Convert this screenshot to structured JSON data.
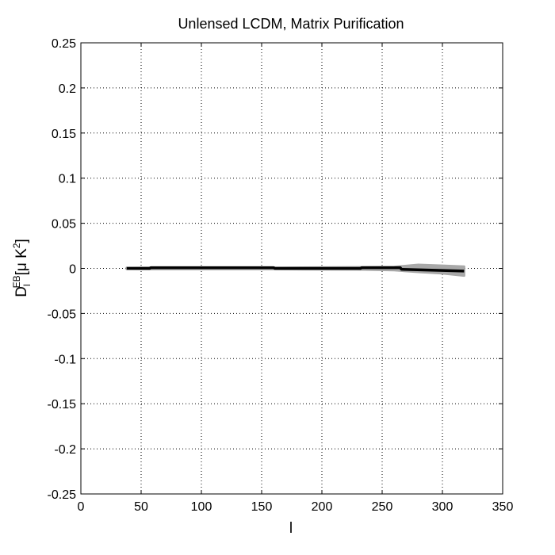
{
  "chart_data": {
    "type": "line",
    "title": "Unlensed LCDM, Matrix Purification",
    "xlabel": "l",
    "ylabel": {
      "base": "D",
      "sub": "l",
      "sup": "EB",
      "unit_open": "[μ K",
      "unit_sup": "2",
      "unit_close": "]"
    },
    "xlim": [
      0,
      350
    ],
    "ylim": [
      -0.25,
      0.25
    ],
    "xticks": [
      0,
      50,
      100,
      150,
      200,
      250,
      300,
      350
    ],
    "yticks": [
      0.25,
      0.2,
      0.15,
      0.1,
      0.05,
      0,
      -0.05,
      -0.1,
      -0.15,
      -0.2,
      -0.25
    ],
    "xtick_labels": [
      "0",
      "50",
      "100",
      "150",
      "200",
      "250",
      "300",
      "350"
    ],
    "ytick_labels": [
      "0.25",
      "0.2",
      "0.15",
      "0.1",
      "0.05",
      "0",
      "-0.05",
      "-0.1",
      "-0.15",
      "-0.2",
      "-0.25"
    ],
    "grid": true,
    "grid_style": "dotted",
    "colors": {
      "band": "#a8a8a8",
      "mean": "#000000",
      "axis": "#000000",
      "grid": "#000000"
    },
    "series": [
      {
        "role": "band-upper",
        "x": [
          38,
          60,
          100,
          160,
          230,
          260,
          280,
          300,
          318
        ],
        "values": [
          0.0005,
          0.0008,
          0.0008,
          0.0007,
          0.0012,
          0.0015,
          0.004,
          0.003,
          0.002
        ]
      },
      {
        "role": "band-lower",
        "x": [
          38,
          60,
          100,
          160,
          230,
          260,
          280,
          300,
          318
        ],
        "values": [
          -0.0005,
          -0.0008,
          -0.0008,
          -0.0008,
          -0.0012,
          -0.002,
          -0.004,
          -0.0055,
          -0.008
        ]
      },
      {
        "role": "mean",
        "x": [
          38,
          57,
          58,
          160,
          161,
          232,
          233,
          265,
          266,
          318
        ],
        "values": [
          0,
          0,
          0.0008,
          0.0008,
          0,
          0,
          0.0008,
          0.0008,
          -0.001,
          -0.003
        ]
      }
    ]
  }
}
